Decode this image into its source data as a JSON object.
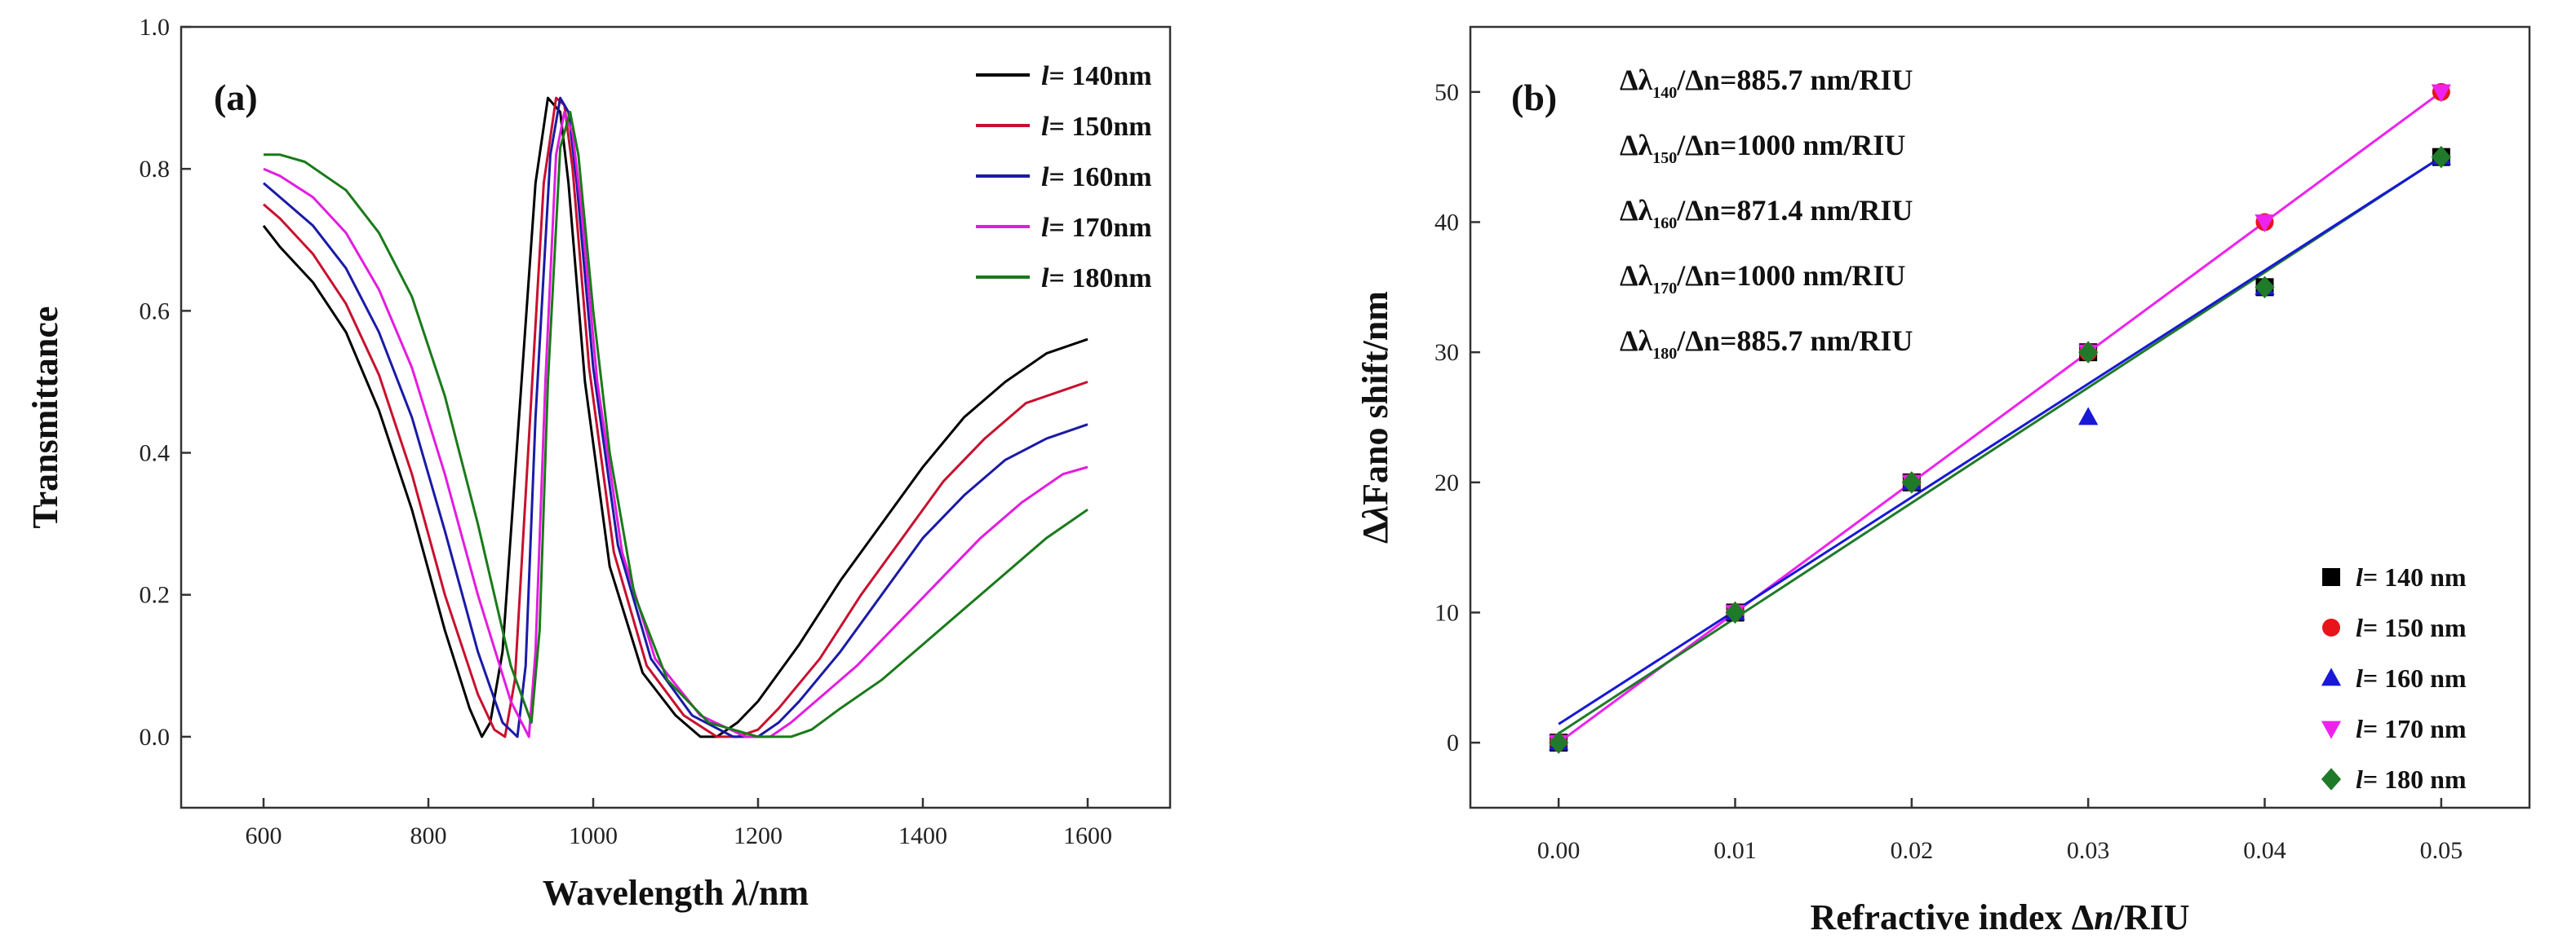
{
  "chart_data": [
    {
      "type": "line",
      "panel_label": "(a)",
      "xlabel_main": "Wavelength ",
      "xlabel_italic": "λ",
      "xlabel_unit": "/nm",
      "ylabel": "Transmittance",
      "xlim": [
        500,
        1700
      ],
      "ylim": [
        -0.1,
        1.0
      ],
      "xticks": [
        "600",
        "800",
        "1000",
        "1200",
        "1400",
        "1600"
      ],
      "yticks": [
        "0.0",
        "0.2",
        "0.4",
        "0.6",
        "0.8",
        "1.0"
      ],
      "legend_position": "top-right",
      "series": [
        {
          "name_prefix": "l",
          "name_rest": "= 140nm",
          "color": "#000000",
          "x": [
            600,
            620,
            660,
            700,
            740,
            780,
            820,
            850,
            865,
            875,
            890,
            910,
            930,
            945,
            960,
            970,
            990,
            1020,
            1060,
            1100,
            1130,
            1150,
            1175,
            1200,
            1250,
            1300,
            1350,
            1400,
            1450,
            1500,
            1550,
            1600
          ],
          "y": [
            0.72,
            0.69,
            0.64,
            0.57,
            0.46,
            0.32,
            0.15,
            0.04,
            0.0,
            0.02,
            0.12,
            0.45,
            0.78,
            0.9,
            0.88,
            0.78,
            0.5,
            0.24,
            0.09,
            0.03,
            0.0,
            0.0,
            0.02,
            0.05,
            0.13,
            0.22,
            0.3,
            0.38,
            0.45,
            0.5,
            0.54,
            0.56
          ]
        },
        {
          "name_prefix": "l",
          "name_rest": "= 150nm",
          "color": "#c8102e",
          "x": [
            600,
            620,
            660,
            700,
            740,
            780,
            820,
            860,
            880,
            893,
            905,
            920,
            940,
            955,
            965,
            975,
            995,
            1025,
            1065,
            1110,
            1150,
            1175,
            1200,
            1225,
            1275,
            1325,
            1375,
            1425,
            1475,
            1525,
            1575,
            1600
          ],
          "y": [
            0.75,
            0.73,
            0.68,
            0.61,
            0.51,
            0.37,
            0.2,
            0.06,
            0.01,
            0.0,
            0.08,
            0.38,
            0.78,
            0.9,
            0.89,
            0.8,
            0.52,
            0.26,
            0.1,
            0.03,
            0.0,
            0.0,
            0.01,
            0.04,
            0.11,
            0.2,
            0.28,
            0.36,
            0.42,
            0.47,
            0.49,
            0.5
          ]
        },
        {
          "name_prefix": "l",
          "name_rest": "= 160nm",
          "color": "#1a1aa6",
          "x": [
            600,
            620,
            660,
            700,
            740,
            780,
            820,
            860,
            890,
            908,
            918,
            930,
            948,
            960,
            970,
            980,
            1000,
            1030,
            1070,
            1120,
            1170,
            1200,
            1225,
            1250,
            1300,
            1350,
            1400,
            1450,
            1500,
            1550,
            1600
          ],
          "y": [
            0.78,
            0.76,
            0.72,
            0.66,
            0.57,
            0.45,
            0.29,
            0.12,
            0.02,
            0.0,
            0.1,
            0.45,
            0.82,
            0.9,
            0.88,
            0.78,
            0.52,
            0.27,
            0.11,
            0.03,
            0.0,
            0.0,
            0.02,
            0.05,
            0.12,
            0.2,
            0.28,
            0.34,
            0.39,
            0.42,
            0.44
          ]
        },
        {
          "name_prefix": "l",
          "name_rest": "= 170nm",
          "color": "#e31ce0",
          "x": [
            600,
            620,
            660,
            700,
            740,
            780,
            820,
            860,
            900,
            922,
            930,
            942,
            955,
            965,
            975,
            985,
            1005,
            1035,
            1075,
            1130,
            1185,
            1215,
            1240,
            1270,
            1320,
            1370,
            1420,
            1470,
            1520,
            1570,
            1600
          ],
          "y": [
            0.8,
            0.79,
            0.76,
            0.71,
            0.63,
            0.52,
            0.37,
            0.2,
            0.05,
            0.0,
            0.12,
            0.5,
            0.82,
            0.88,
            0.85,
            0.75,
            0.5,
            0.26,
            0.11,
            0.03,
            0.0,
            0.0,
            0.02,
            0.05,
            0.1,
            0.16,
            0.22,
            0.28,
            0.33,
            0.37,
            0.38
          ]
        },
        {
          "name_prefix": "l",
          "name_rest": "= 180nm",
          "color": "#1a7a1a",
          "x": [
            600,
            620,
            650,
            700,
            740,
            780,
            820,
            860,
            900,
            925,
            935,
            945,
            960,
            972,
            982,
            1000,
            1020,
            1050,
            1090,
            1140,
            1200,
            1240,
            1265,
            1300,
            1350,
            1400,
            1450,
            1500,
            1550,
            1600
          ],
          "y": [
            0.82,
            0.82,
            0.81,
            0.77,
            0.71,
            0.62,
            0.48,
            0.3,
            0.1,
            0.02,
            0.15,
            0.5,
            0.83,
            0.88,
            0.82,
            0.6,
            0.4,
            0.2,
            0.08,
            0.02,
            0.0,
            0.0,
            0.01,
            0.04,
            0.08,
            0.13,
            0.18,
            0.23,
            0.28,
            0.32
          ]
        }
      ]
    },
    {
      "type": "scatter",
      "panel_label": "(b)",
      "xlabel_main": "Refractive index Δ",
      "xlabel_italic": "n",
      "xlabel_unit": "/RIU",
      "ylabel_prefix": "Δ",
      "ylabel_italic": "λ",
      "ylabel_rest": "Fano shift/nm",
      "xlim": [
        -0.005,
        0.055
      ],
      "ylim": [
        -5,
        55
      ],
      "xticks": [
        "0.00",
        "0.01",
        "0.02",
        "0.03",
        "0.04",
        "0.05"
      ],
      "yticks": [
        "0",
        "10",
        "20",
        "30",
        "40",
        "50"
      ],
      "legend_position": "bottom-right",
      "annotations": [
        {
          "prefix": "Δλ",
          "sub": "140",
          "mid": "/Δn",
          "value": "=885.7 nm/RIU"
        },
        {
          "prefix": "Δλ",
          "sub": "150",
          "mid": "/Δn",
          "value": "=1000 nm/RIU"
        },
        {
          "prefix": "Δλ",
          "sub": "160",
          "mid": "/Δn",
          "value": "=871.4 nm/RIU"
        },
        {
          "prefix": "Δλ",
          "sub": "170",
          "mid": "/Δn",
          "value": "=1000 nm/RIU"
        },
        {
          "prefix": "Δλ",
          "sub": "180",
          "mid": "/Δn",
          "value": "=885.7 nm/RIU"
        }
      ],
      "series": [
        {
          "name_prefix": "l",
          "name_rest": "= 140 nm",
          "color": "#000000",
          "marker": "square",
          "x": [
            0,
            0.01,
            0.02,
            0.03,
            0.04,
            0.05
          ],
          "y": [
            0,
            10,
            20,
            30,
            35,
            45
          ]
        },
        {
          "name_prefix": "l",
          "name_rest": "= 150 nm",
          "color": "#e8141c",
          "marker": "circle",
          "x": [
            0,
            0.01,
            0.02,
            0.03,
            0.04,
            0.05
          ],
          "y": [
            0,
            10,
            20,
            30,
            40,
            50
          ]
        },
        {
          "name_prefix": "l",
          "name_rest": "= 160 nm",
          "color": "#1818d6",
          "marker": "triangle-up",
          "x": [
            0,
            0.01,
            0.02,
            0.03,
            0.04,
            0.05
          ],
          "y": [
            0,
            10,
            20,
            25,
            35,
            45
          ]
        },
        {
          "name_prefix": "l",
          "name_rest": "= 170 nm",
          "color": "#ee22ee",
          "marker": "triangle-down",
          "x": [
            0,
            0.01,
            0.02,
            0.03,
            0.04,
            0.05
          ],
          "y": [
            0,
            10,
            20,
            30,
            40,
            50
          ]
        },
        {
          "name_prefix": "l",
          "name_rest": "= 180 nm",
          "color": "#1f7a2a",
          "marker": "diamond",
          "x": [
            0,
            0.01,
            0.02,
            0.03,
            0.04,
            0.05
          ],
          "y": [
            0,
            10,
            20,
            30,
            35,
            45
          ]
        }
      ],
      "fit_lines": [
        {
          "color": "#ee22ee",
          "x": [
            0,
            0.05
          ],
          "y": [
            0,
            50
          ]
        },
        {
          "color": "#1f7a2a",
          "x": [
            0,
            0.05
          ],
          "y": [
            0.71,
            45
          ]
        },
        {
          "color": "#1818d6",
          "x": [
            0,
            0.05
          ],
          "y": [
            1.43,
            45
          ]
        }
      ]
    }
  ]
}
